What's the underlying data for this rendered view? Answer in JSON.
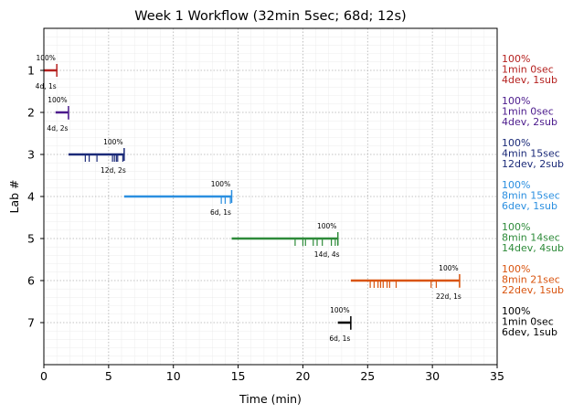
{
  "chart_data": {
    "type": "timeline",
    "title": "Week 1 Workflow (32min 5sec; 68d; 12s)",
    "xlabel": "Time (min)",
    "ylabel": "Lab #",
    "xlim": [
      0,
      35
    ],
    "ylim": [
      0,
      8
    ],
    "xticks": [
      0,
      5,
      10,
      15,
      20,
      25,
      30,
      35
    ],
    "yticks": [
      1,
      2,
      3,
      4,
      5,
      6,
      7
    ],
    "grid": true,
    "labs": [
      {
        "lab": 1,
        "color": "#b5211f",
        "start": 0.0,
        "end": 1.0,
        "submissions": [],
        "percent_label": "100%",
        "count_label": "4d, 1s",
        "side_lines": [
          "100%",
          "1min 0sec",
          "4dev, 1sub"
        ]
      },
      {
        "lab": 2,
        "color": "#4b1a8c",
        "start": 0.9,
        "end": 1.9,
        "submissions": [
          1.9
        ],
        "percent_label": "100%",
        "count_label": "4d, 2s",
        "side_lines": [
          "100%",
          "1min 0sec",
          "4dev, 2sub"
        ]
      },
      {
        "lab": 3,
        "color": "#1b2a78",
        "start": 1.9,
        "end": 6.2,
        "submissions": [
          3.2,
          3.5,
          4.1,
          5.3,
          5.45,
          5.6,
          5.7,
          6.1
        ],
        "percent_label": "100%",
        "count_label": "12d, 2s",
        "side_lines": [
          "100%",
          "4min 15sec",
          "12dev, 2sub"
        ]
      },
      {
        "lab": 4,
        "color": "#2b8fe0",
        "start": 6.2,
        "end": 14.5,
        "submissions": [
          13.7,
          14.0,
          14.4
        ],
        "percent_label": "100%",
        "count_label": "6d, 1s",
        "side_lines": [
          "100%",
          "8min 15sec",
          "6dev, 1sub"
        ]
      },
      {
        "lab": 5,
        "color": "#2e8b3a",
        "start": 14.5,
        "end": 22.7,
        "submissions": [
          19.4,
          20.0,
          20.2,
          20.8,
          21.1,
          21.5,
          22.2,
          22.5,
          22.7
        ],
        "percent_label": "100%",
        "count_label": "14d, 4s",
        "side_lines": [
          "100%",
          "8min 14sec",
          "14dev, 4sub"
        ]
      },
      {
        "lab": 6,
        "color": "#d9540f",
        "start": 23.7,
        "end": 32.1,
        "submissions": [
          25.2,
          25.5,
          25.8,
          26.0,
          26.2,
          26.5,
          26.7,
          27.2,
          29.9,
          30.3,
          32.1
        ],
        "percent_label": "100%",
        "count_label": "22d, 1s",
        "side_lines": [
          "100%",
          "8min 21sec",
          "22dev, 1sub"
        ]
      },
      {
        "lab": 7,
        "color": "#000000",
        "start": 22.7,
        "end": 23.7,
        "submissions": [
          23.7
        ],
        "percent_label": "100%",
        "count_label": "6d, 1s",
        "side_lines": [
          "100%",
          "1min 0sec",
          "6dev, 1sub"
        ]
      }
    ]
  }
}
